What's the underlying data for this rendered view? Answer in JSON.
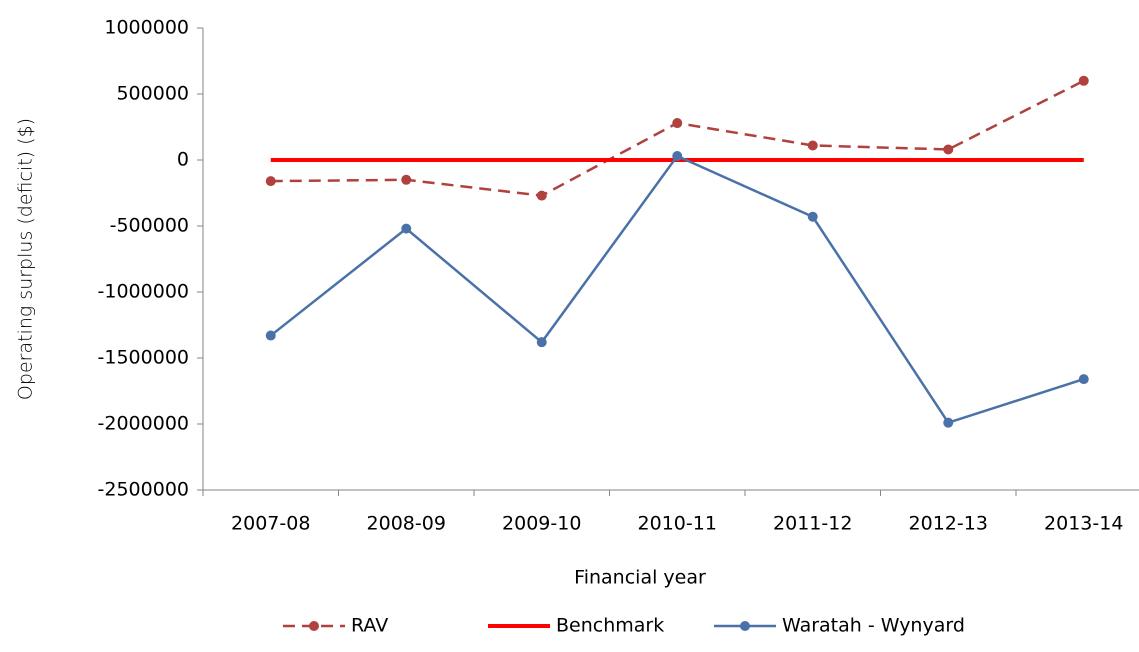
{
  "chart_data": {
    "type": "line",
    "y_label": "Operating surplus (deficit) ($)",
    "x_label": "Financial year",
    "categories": [
      "2007-08",
      "2008-09",
      "2009-10",
      "2010-11",
      "2011-12",
      "2012-13",
      "2013-14"
    ],
    "series": [
      {
        "name": "RAV",
        "color": "#b0413e",
        "line_style": "dashed",
        "marker": true,
        "values": [
          -160000,
          -150000,
          -270000,
          280000,
          110000,
          80000,
          600000
        ]
      },
      {
        "name": "Benchmark",
        "color": "#ff0000",
        "line_style": "solid",
        "marker": false,
        "values": [
          0,
          0,
          0,
          0,
          0,
          0,
          0
        ]
      },
      {
        "name": "Waratah - Wynyard",
        "color": "#4a72a8",
        "line_style": "solid",
        "marker": true,
        "values": [
          -1330000,
          -520000,
          -1380000,
          30000,
          -430000,
          -1990000,
          -1660000
        ]
      }
    ],
    "ylim": [
      -2500000,
      1000000
    ],
    "yticks": [
      -2500000,
      -2000000,
      -1500000,
      -1000000,
      -500000,
      0,
      500000,
      1000000
    ],
    "grid": false,
    "legend": "bottom"
  }
}
